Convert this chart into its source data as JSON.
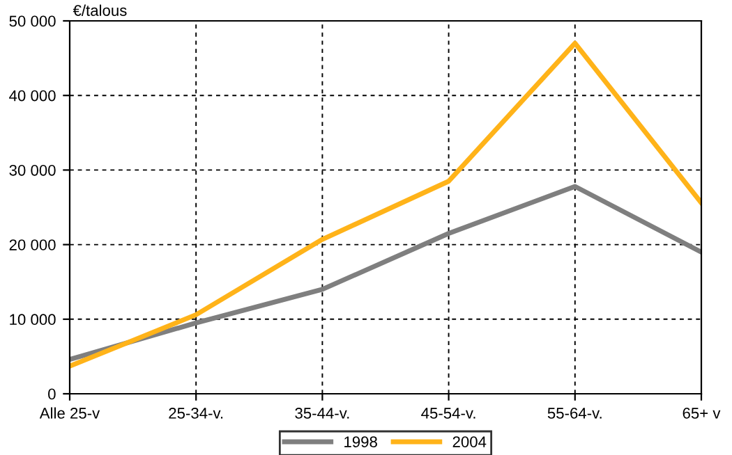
{
  "chart_data": {
    "type": "line",
    "ylabel": "€/talous",
    "categories": [
      "Alle 25-v",
      "25-34-v.",
      "35-44-v.",
      "45-54-v.",
      "55-64-v.",
      "65+ v"
    ],
    "series": [
      {
        "name": "1998",
        "color": "#7f7f7f",
        "values": [
          4600,
          9500,
          14000,
          21500,
          27800,
          19000
        ]
      },
      {
        "name": "2004",
        "color": "#ffb319",
        "values": [
          3700,
          10600,
          20700,
          28500,
          47000,
          25600
        ]
      }
    ],
    "ylim": [
      0,
      50000
    ],
    "yticks": [
      0,
      {
        "value": 10000,
        "label": "10 000"
      },
      {
        "value": 20000,
        "label": "20 000"
      },
      {
        "value": 30000,
        "label": "30 000"
      },
      {
        "value": 40000,
        "label": "40 000"
      },
      {
        "value": 50000,
        "label": "50 000"
      }
    ],
    "grid": true,
    "legend": "bottom",
    "marker": "none",
    "line_style": "solid"
  }
}
